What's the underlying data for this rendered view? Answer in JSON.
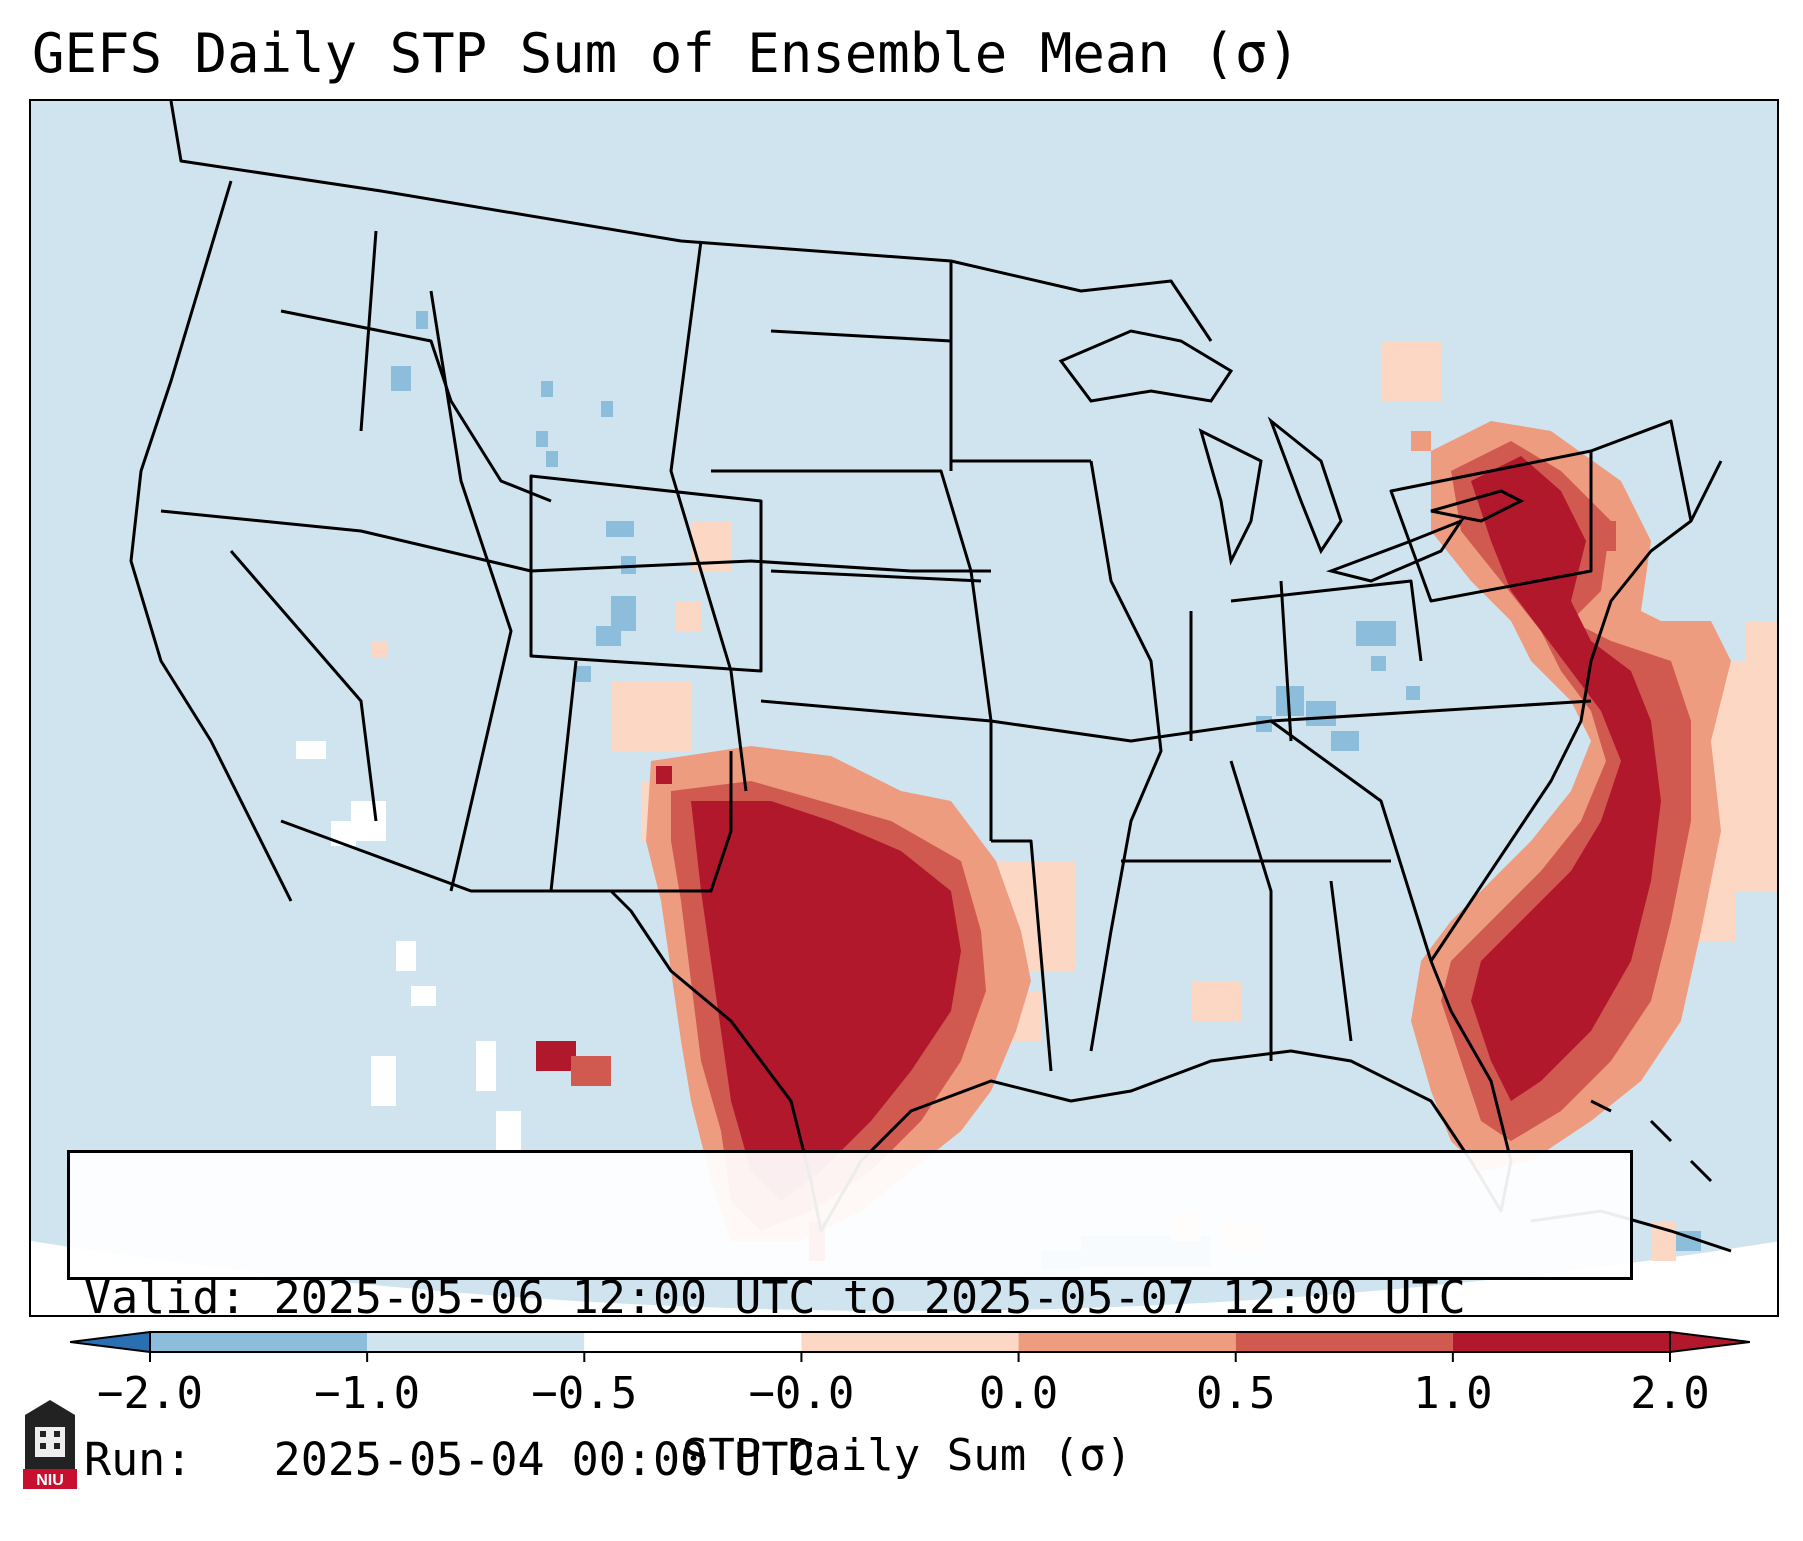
{
  "title": "GEFS Daily STP Sum of Ensemble Mean (σ)",
  "info": {
    "valid_label": "Valid:",
    "valid_value": "2025-05-06 12:00 UTC to 2025-05-07 12:00 UTC",
    "run_label": "Run:",
    "run_value": "2025-05-04 00:00 UTC"
  },
  "colorbar": {
    "label": "STP Daily Sum (σ)",
    "ticks": [
      "−2.0",
      "−1.0",
      "−0.5",
      "−0.0",
      "0.0",
      "0.5",
      "1.0",
      "2.0"
    ],
    "colors": [
      "#2a6fb2",
      "#8cbedb",
      "#d0e4f0",
      "#ffffff",
      "#fcd8c4",
      "#ee9c80",
      "#d05a50",
      "#b2182b"
    ],
    "extend": "both"
  },
  "logo": {
    "text": "NIU",
    "color": "#c8102e"
  },
  "map": {
    "background_color": "#d0e4f0",
    "features": [
      "state-borders",
      "coastlines",
      "international-borders",
      "great-lakes"
    ],
    "highlights": [
      {
        "region": "Texas / Southern Plains",
        "level": "2.0"
      },
      {
        "region": "Southeast coast / Florida / Atlantic",
        "level": "2.0"
      },
      {
        "region": "Mid-Atlantic / Pennsylvania / New York",
        "level": "2.0"
      }
    ]
  }
}
